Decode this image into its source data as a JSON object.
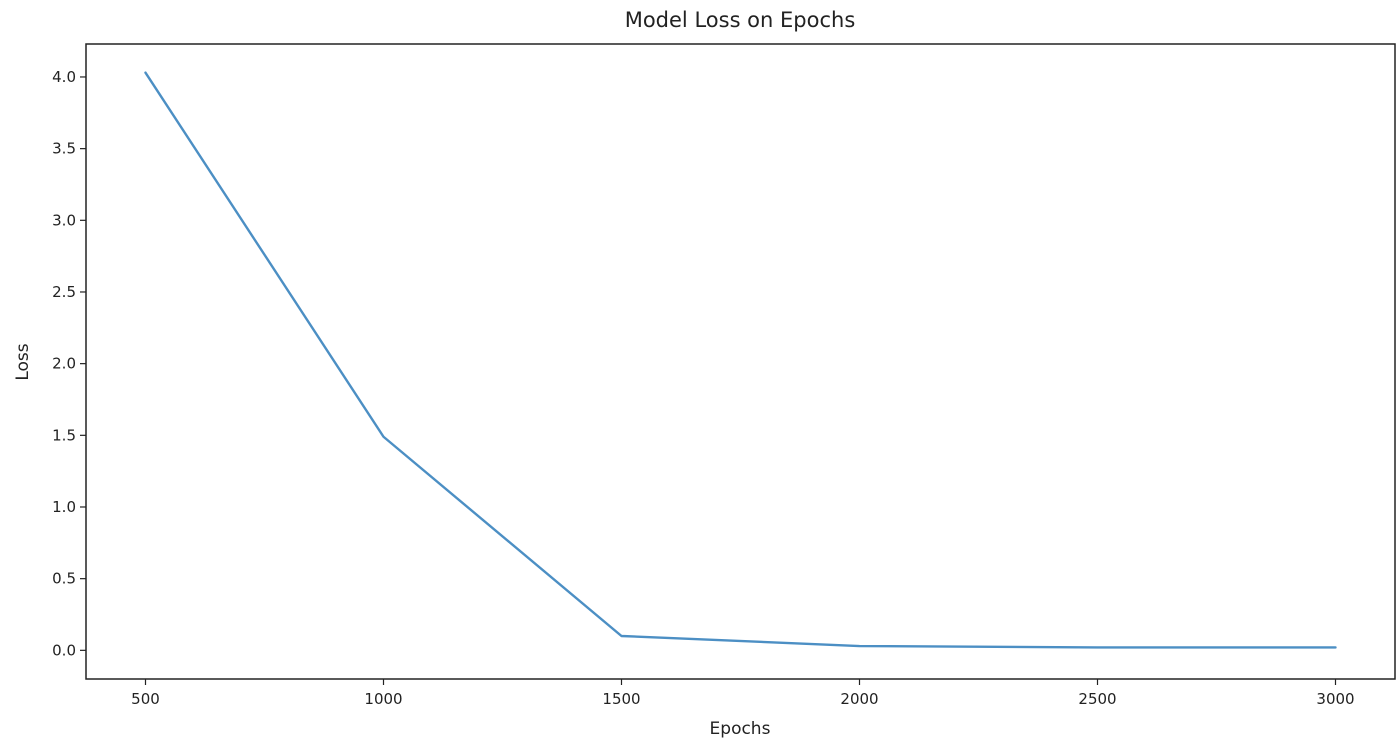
{
  "chart_data": {
    "type": "line",
    "title": "Model Loss on Epochs",
    "xlabel": "Epochs",
    "ylabel": "Loss",
    "x": [
      500,
      1000,
      1500,
      2000,
      2500,
      3000
    ],
    "series": [
      {
        "values": [
          4.03,
          1.49,
          0.1,
          0.03,
          0.02,
          0.02
        ],
        "color": "#4c8fc4"
      }
    ],
    "xlim": [
      375,
      3125
    ],
    "ylim": [
      -0.2,
      4.23
    ],
    "x_ticks": [
      "500",
      "1000",
      "1500",
      "2000",
      "2500",
      "3000"
    ],
    "y_ticks": [
      "0.0",
      "0.5",
      "1.0",
      "1.5",
      "2.0",
      "2.5",
      "3.0",
      "3.5",
      "4.0"
    ],
    "grid": false,
    "legend": "none"
  }
}
